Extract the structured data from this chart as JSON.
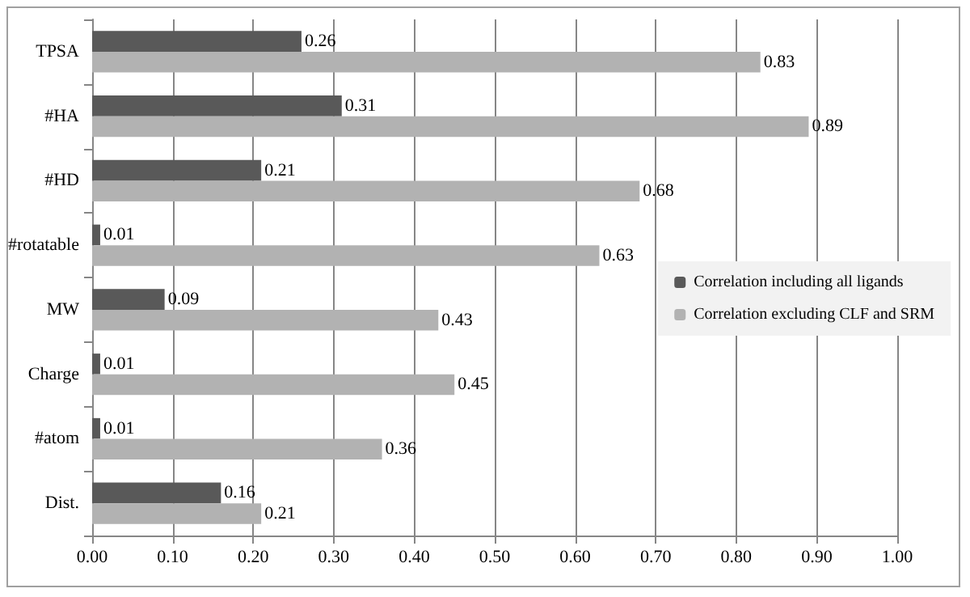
{
  "chart_data": {
    "type": "bar",
    "orientation": "horizontal",
    "categories": [
      "TPSA",
      "#HA",
      "#HD",
      "#rotatable",
      "MW",
      "Charge",
      "#atom",
      "Dist."
    ],
    "series": [
      {
        "name": "Correlation including all ligands",
        "color": "#595959",
        "values": [
          0.26,
          0.31,
          0.21,
          0.01,
          0.09,
          0.01,
          0.01,
          0.16
        ]
      },
      {
        "name": "Correlation excluding CLF and SRM",
        "color": "#b2b2b2",
        "values": [
          0.83,
          0.89,
          0.68,
          0.63,
          0.43,
          0.45,
          0.36,
          0.21
        ]
      }
    ],
    "xlim": [
      0,
      1
    ],
    "xticks": [
      {
        "value": 0,
        "label": "0.00"
      },
      {
        "value": 0.1,
        "label": "0.10"
      },
      {
        "value": 0.2,
        "label": "0.20"
      },
      {
        "value": 0.3,
        "label": "0.30"
      },
      {
        "value": 0.4,
        "label": "0.40"
      },
      {
        "value": 0.5,
        "label": "0.50"
      },
      {
        "value": 0.6,
        "label": "0.60"
      },
      {
        "value": 0.7,
        "label": "0.70"
      },
      {
        "value": 0.8,
        "label": "0.80"
      },
      {
        "value": 0.9,
        "label": "0.90"
      },
      {
        "value": 1,
        "label": "1.00"
      }
    ],
    "grid": "x",
    "legend": "right",
    "data_labels": true
  }
}
